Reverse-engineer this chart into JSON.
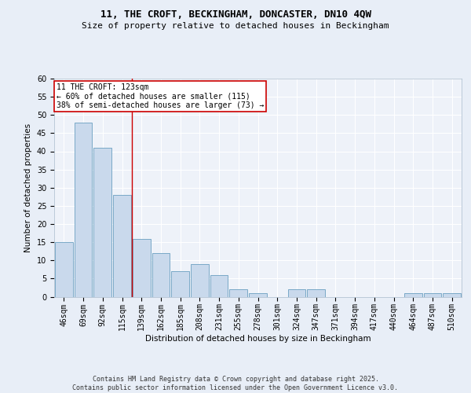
{
  "title1": "11, THE CROFT, BECKINGHAM, DONCASTER, DN10 4QW",
  "title2": "Size of property relative to detached houses in Beckingham",
  "xlabel": "Distribution of detached houses by size in Beckingham",
  "ylabel": "Number of detached properties",
  "categories": [
    "46sqm",
    "69sqm",
    "92sqm",
    "115sqm",
    "139sqm",
    "162sqm",
    "185sqm",
    "208sqm",
    "231sqm",
    "255sqm",
    "278sqm",
    "301sqm",
    "324sqm",
    "347sqm",
    "371sqm",
    "394sqm",
    "417sqm",
    "440sqm",
    "464sqm",
    "487sqm",
    "510sqm"
  ],
  "values": [
    15,
    48,
    41,
    28,
    16,
    12,
    7,
    9,
    6,
    2,
    1,
    0,
    2,
    2,
    0,
    0,
    0,
    0,
    1,
    1,
    1
  ],
  "bar_color": "#c9d9ec",
  "bar_edge_color": "#6a9fc0",
  "red_line_x": 3.5,
  "annotation_text": "11 THE CROFT: 123sqm\n← 60% of detached houses are smaller (115)\n38% of semi-detached houses are larger (73) →",
  "annotation_box_color": "#ffffff",
  "annotation_box_edge": "#cc0000",
  "red_line_color": "#cc0000",
  "ylim": [
    0,
    60
  ],
  "yticks": [
    0,
    5,
    10,
    15,
    20,
    25,
    30,
    35,
    40,
    45,
    50,
    55,
    60
  ],
  "bg_color": "#e8eef7",
  "plot_bg_color": "#eef2f9",
  "footer": "Contains HM Land Registry data © Crown copyright and database right 2025.\nContains public sector information licensed under the Open Government Licence v3.0.",
  "title_fontsize": 9,
  "subtitle_fontsize": 8,
  "axis_label_fontsize": 7.5,
  "tick_fontsize": 7,
  "footer_fontsize": 6
}
